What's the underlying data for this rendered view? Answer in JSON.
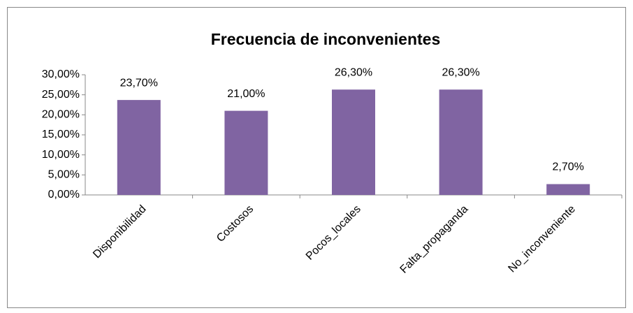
{
  "chart_data": {
    "type": "bar",
    "title": "Frecuencia de inconvenientes",
    "categories": [
      "Disponibilidad",
      "Costosos",
      "Pocos_locales",
      "Falta_propaganda",
      "No_inconveniente"
    ],
    "values": [
      23.7,
      21.0,
      26.3,
      26.3,
      2.7
    ],
    "value_labels": [
      "23,70%",
      "21,00%",
      "26,30%",
      "26,30%",
      "2,70%"
    ],
    "color": "#8064a2",
    "ylim": [
      0,
      30
    ],
    "yticks": [
      {
        "value": 0,
        "label": "0,00%"
      },
      {
        "value": 5,
        "label": "5,00%"
      },
      {
        "value": 10,
        "label": "10,00%"
      },
      {
        "value": 15,
        "label": "15,00%"
      },
      {
        "value": 20,
        "label": "20,00%"
      },
      {
        "value": 25,
        "label": "25,00%"
      },
      {
        "value": 30,
        "label": "30,00%"
      }
    ],
    "grid": false
  }
}
